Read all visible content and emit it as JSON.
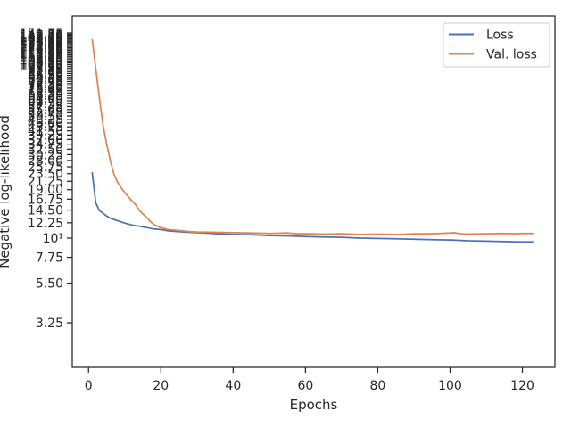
{
  "chart_data": {
    "type": "line",
    "xlabel": "Epochs",
    "ylabel": "Negative log-likelihood",
    "y_scale": "log",
    "xlim": [
      -4.5,
      129
    ],
    "ylim": [
      1.8,
      190
    ],
    "x_ticks": [
      0,
      20,
      40,
      60,
      80,
      100,
      120
    ],
    "y_ticks": [
      {
        "value": 3.25,
        "label": "3.25"
      },
      {
        "value": 5.5,
        "label": "5.50"
      },
      {
        "value": 7.75,
        "label": "7.75"
      },
      {
        "value": 10,
        "label": "10¹"
      },
      {
        "value": 12.25,
        "label": "12.25"
      },
      {
        "value": 14.5,
        "label": "14.50"
      },
      {
        "value": 16.75,
        "label": "16.75"
      },
      {
        "value": 19.0,
        "label": "19.00"
      },
      {
        "value": 21.25,
        "label": "21.25"
      },
      {
        "value": 23.5,
        "label": "23.50"
      },
      {
        "value": 25.75,
        "label": "25.75"
      },
      {
        "value": 28.0,
        "label": "28.00"
      },
      {
        "value": 30.25,
        "label": "30.25"
      },
      {
        "value": 32.5,
        "label": "32.50"
      },
      {
        "value": 34.75,
        "label": "34.75"
      },
      {
        "value": 37.0,
        "label": "37.00"
      },
      {
        "value": 39.25,
        "label": "39.25"
      },
      {
        "value": 41.5,
        "label": "41.50"
      },
      {
        "value": 43.75,
        "label": "43.75"
      },
      {
        "value": 46.0,
        "label": "46.00"
      },
      {
        "value": 48.25,
        "label": "48.25"
      },
      {
        "value": 50.5,
        "label": "50.50"
      },
      {
        "value": 52.75,
        "label": "52.75"
      },
      {
        "value": 55.0,
        "label": "55.00"
      },
      {
        "value": 57.25,
        "label": "57.25"
      },
      {
        "value": 59.5,
        "label": "59.50"
      },
      {
        "value": 61.75,
        "label": "61.75"
      },
      {
        "value": 64.0,
        "label": "64.00"
      },
      {
        "value": 66.25,
        "label": "66.25"
      },
      {
        "value": 68.5,
        "label": "68.50"
      },
      {
        "value": 70.75,
        "label": "70.75"
      },
      {
        "value": 73.0,
        "label": "73.00"
      },
      {
        "value": 75.25,
        "label": "75.25"
      },
      {
        "value": 77.5,
        "label": "77.50"
      },
      {
        "value": 79.75,
        "label": "79.75"
      },
      {
        "value": 82.0,
        "label": "82.00"
      },
      {
        "value": 84.25,
        "label": "84.25"
      },
      {
        "value": 86.5,
        "label": "86.50"
      },
      {
        "value": 88.75,
        "label": "88.75"
      },
      {
        "value": 91.0,
        "label": "91.00"
      },
      {
        "value": 93.25,
        "label": "93.25"
      },
      {
        "value": 95.5,
        "label": "95.50"
      },
      {
        "value": 97.75,
        "label": "97.75"
      },
      {
        "value": 100.0,
        "label": "100.00"
      },
      {
        "value": 102.25,
        "label": "102.25"
      },
      {
        "value": 104.5,
        "label": "104.50"
      },
      {
        "value": 106.75,
        "label": "106.75"
      },
      {
        "value": 109.0,
        "label": "109.00"
      },
      {
        "value": 111.25,
        "label": "111.25"
      },
      {
        "value": 113.5,
        "label": "113.50"
      },
      {
        "value": 115.75,
        "label": "115.75"
      },
      {
        "value": 118.0,
        "label": "118.00"
      },
      {
        "value": 120.25,
        "label": "120.25"
      },
      {
        "value": 122.5,
        "label": "122.50"
      },
      {
        "value": 124.75,
        "label": "124.75"
      },
      {
        "value": 127.0,
        "label": "127.00"
      },
      {
        "value": 129.25,
        "label": "129.25"
      },
      {
        "value": 131.5,
        "label": "131.50"
      },
      {
        "value": 133.75,
        "label": "133.75"
      },
      {
        "value": 136.0,
        "label": "136.00"
      },
      {
        "value": 138.25,
        "label": "138.25"
      },
      {
        "value": 140.5,
        "label": "140.50"
      },
      {
        "value": 142.75,
        "label": "142.75"
      },
      {
        "value": 145.0,
        "label": "145.00"
      },
      {
        "value": 147.25,
        "label": "147.25"
      },
      {
        "value": 149.5,
        "label": "149.50"
      },
      {
        "value": 151.75,
        "label": "151.75"
      }
    ],
    "legend": {
      "position": "top-right"
    },
    "grid": false,
    "series": [
      {
        "name": "Loss",
        "color": "#4c72b0",
        "points": [
          [
            1,
            24.0
          ],
          [
            2,
            16.0
          ],
          [
            3,
            14.4
          ],
          [
            4,
            13.9
          ],
          [
            5,
            13.4
          ],
          [
            6,
            13.0
          ],
          [
            7,
            12.8
          ],
          [
            8,
            12.6
          ],
          [
            9,
            12.4
          ],
          [
            10,
            12.2
          ],
          [
            12,
            11.9
          ],
          [
            14,
            11.7
          ],
          [
            16,
            11.5
          ],
          [
            18,
            11.3
          ],
          [
            20,
            11.2
          ],
          [
            22,
            11.0
          ],
          [
            25,
            10.9
          ],
          [
            28,
            10.8
          ],
          [
            32,
            10.7
          ],
          [
            36,
            10.6
          ],
          [
            40,
            10.5
          ],
          [
            45,
            10.45
          ],
          [
            50,
            10.35
          ],
          [
            55,
            10.3
          ],
          [
            60,
            10.2
          ],
          [
            65,
            10.15
          ],
          [
            70,
            10.1
          ],
          [
            75,
            10.0
          ],
          [
            80,
            9.95
          ],
          [
            85,
            9.9
          ],
          [
            90,
            9.85
          ],
          [
            95,
            9.8
          ],
          [
            100,
            9.75
          ],
          [
            105,
            9.65
          ],
          [
            110,
            9.6
          ],
          [
            115,
            9.55
          ],
          [
            120,
            9.5
          ],
          [
            123,
            9.5
          ]
        ]
      },
      {
        "name": "Val. loss",
        "color": "#dd8452",
        "points": [
          [
            1,
            140.0
          ],
          [
            2,
            95.0
          ],
          [
            3,
            64.0
          ],
          [
            4,
            45.0
          ],
          [
            5,
            35.0
          ],
          [
            6,
            28.0
          ],
          [
            7,
            23.5
          ],
          [
            8,
            21.0
          ],
          [
            9,
            19.5
          ],
          [
            10,
            18.3
          ],
          [
            11,
            17.3
          ],
          [
            12,
            16.4
          ],
          [
            13,
            15.6
          ],
          [
            14,
            14.5
          ],
          [
            15,
            13.8
          ],
          [
            16,
            13.2
          ],
          [
            17,
            12.5
          ],
          [
            18,
            12.0
          ],
          [
            19,
            11.7
          ],
          [
            20,
            11.5
          ],
          [
            22,
            11.2
          ],
          [
            25,
            11.05
          ],
          [
            28,
            10.9
          ],
          [
            30,
            10.85
          ],
          [
            35,
            10.8
          ],
          [
            40,
            10.75
          ],
          [
            45,
            10.7
          ],
          [
            50,
            10.65
          ],
          [
            55,
            10.7
          ],
          [
            58,
            10.6
          ],
          [
            60,
            10.6
          ],
          [
            65,
            10.55
          ],
          [
            70,
            10.6
          ],
          [
            75,
            10.5
          ],
          [
            80,
            10.55
          ],
          [
            85,
            10.5
          ],
          [
            90,
            10.6
          ],
          [
            95,
            10.6
          ],
          [
            100,
            10.7
          ],
          [
            101,
            10.75
          ],
          [
            103,
            10.6
          ],
          [
            105,
            10.55
          ],
          [
            110,
            10.6
          ],
          [
            115,
            10.65
          ],
          [
            118,
            10.6
          ],
          [
            120,
            10.65
          ],
          [
            123,
            10.65
          ]
        ]
      }
    ]
  }
}
